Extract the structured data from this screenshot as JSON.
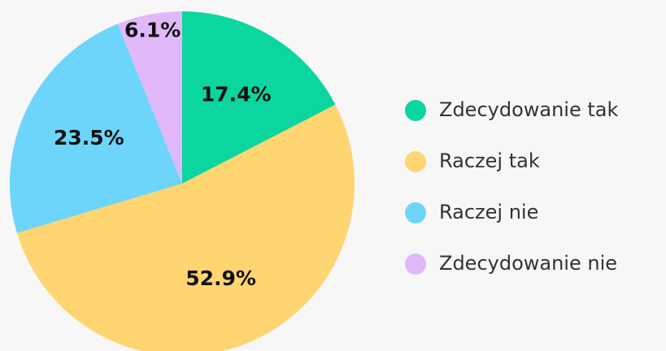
{
  "chart_data": {
    "type": "pie",
    "categories": [
      "Zdecydowanie tak",
      "Raczej tak",
      "Raczej nie",
      "Zdecydowanie nie"
    ],
    "values": [
      17.4,
      52.9,
      23.5,
      6.1
    ],
    "value_labels": [
      "17.4%",
      "52.9%",
      "23.5%",
      "6.1%"
    ],
    "colors": [
      "#0bd69f",
      "#ffd571",
      "#6dd5fa",
      "#e1b9fb"
    ],
    "legend": "right"
  }
}
